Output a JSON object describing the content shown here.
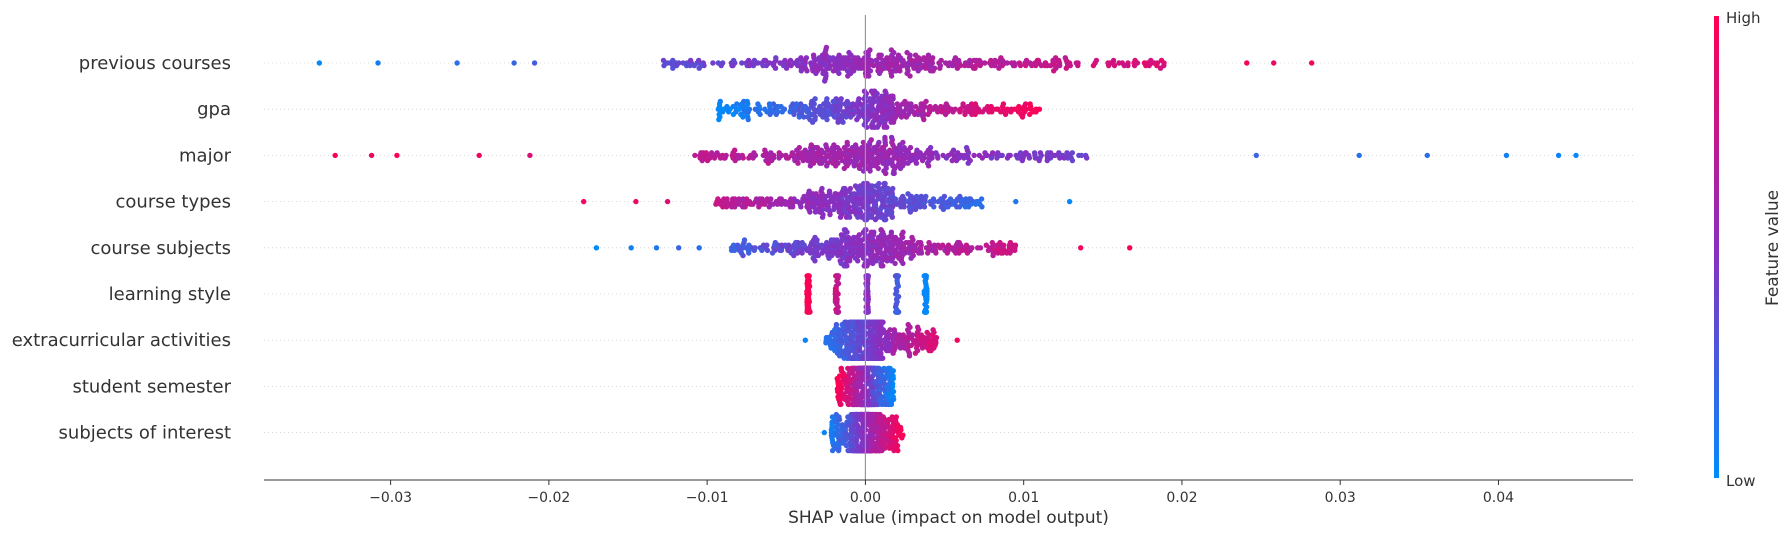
{
  "chart_data": {
    "type": "scatter",
    "subtype": "shap-beeswarm",
    "xlabel": "SHAP value (impact on model output)",
    "x_ticks": [
      -0.03,
      -0.02,
      -0.01,
      0.0,
      0.01,
      0.02,
      0.03,
      0.04
    ],
    "x_tick_labels": [
      "−0.03",
      "−0.02",
      "−0.01",
      "0.00",
      "0.01",
      "0.02",
      "0.03",
      "0.04"
    ],
    "xlim": [
      -0.038,
      0.0485
    ],
    "features": [
      {
        "name": "previous courses",
        "min": -0.0345,
        "max": 0.0282,
        "core": [
          -0.013,
          0.019
        ],
        "low_side": "left",
        "outliers": [
          -0.0345,
          -0.0308,
          -0.0258,
          -0.0222,
          -0.0209,
          0.0241,
          0.0258,
          0.0282
        ]
      },
      {
        "name": "gpa",
        "min": -0.0093,
        "max": 0.011,
        "core": [
          -0.0093,
          0.011
        ],
        "low_side": "left",
        "outliers": []
      },
      {
        "name": "major",
        "min": -0.0335,
        "max": 0.0449,
        "core": [
          -0.011,
          0.014
        ],
        "low_side": "right",
        "outliers": [
          -0.0335,
          -0.0312,
          -0.0296,
          -0.0244,
          -0.0212,
          0.0247,
          0.0312,
          0.0355,
          0.0405,
          0.0438,
          0.0449
        ]
      },
      {
        "name": "course types",
        "min": -0.0178,
        "max": 0.0129,
        "core": [
          -0.0095,
          0.0075
        ],
        "low_side": "right",
        "outliers": [
          -0.0178,
          -0.0145,
          -0.0125,
          0.0095,
          0.0129
        ]
      },
      {
        "name": "course subjects",
        "min": -0.017,
        "max": 0.0167,
        "core": [
          -0.0085,
          0.0095
        ],
        "low_side": "left",
        "outliers": [
          -0.017,
          -0.0148,
          -0.0132,
          -0.0118,
          -0.0105,
          0.0136,
          0.0167
        ]
      },
      {
        "name": "learning style",
        "min": -0.0036,
        "max": 0.0038,
        "clusters": [
          -0.0036,
          -0.0018,
          0.0001,
          0.002,
          0.0038
        ],
        "low_side": "right",
        "outliers": []
      },
      {
        "name": "extracurricular activities",
        "min": -0.0038,
        "max": 0.0058,
        "core": [
          -0.0025,
          0.0045
        ],
        "low_side": "left",
        "outliers": [
          -0.0038,
          0.0058
        ]
      },
      {
        "name": "student semester",
        "min": -0.0018,
        "max": 0.0018,
        "core": [
          -0.0018,
          0.0018
        ],
        "low_side": "right",
        "outliers": []
      },
      {
        "name": "subjects of interest",
        "min": -0.0026,
        "max": 0.0024,
        "core": [
          -0.0022,
          0.0024
        ],
        "low_side": "left",
        "outliers": [
          -0.0026
        ]
      }
    ],
    "colorbar": {
      "label": "Feature value",
      "high_label": "High",
      "low_label": "Low",
      "high_color": "#ff0052",
      "mid_color": "#8a2ec0",
      "low_color": "#008bfb"
    },
    "grid": false,
    "legend": "colorbar-right"
  }
}
